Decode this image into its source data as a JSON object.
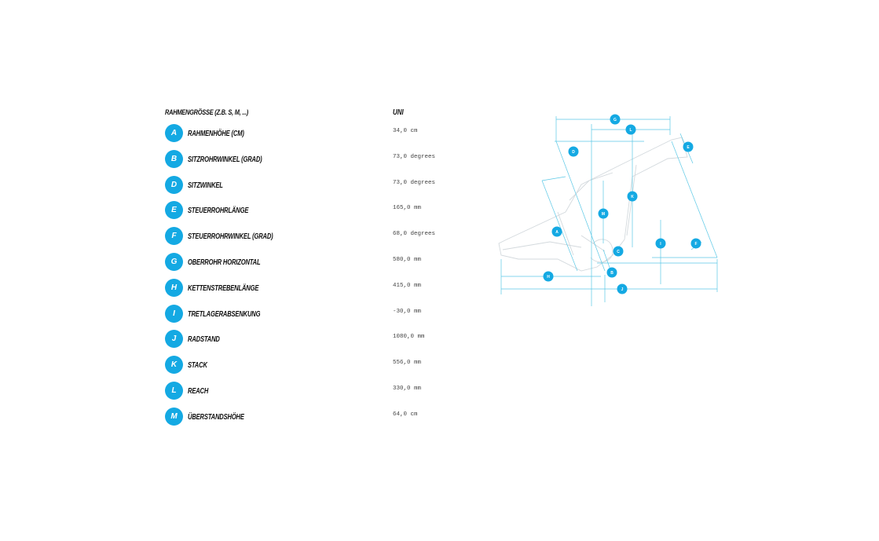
{
  "table": {
    "header_label": "RAHMENGRÖSSE (Z.B. S, M, ...)",
    "size_label": "UNI",
    "rows": [
      {
        "letter": "A",
        "label": "RAHMENHÖHE (CM)",
        "value": "34,0 cm"
      },
      {
        "letter": "B",
        "label": "SITZROHRWINKEL (GRAD)",
        "value": "73,0 degrees"
      },
      {
        "letter": "D",
        "label": "SITZWINKEL",
        "value": "73,0 degrees"
      },
      {
        "letter": "E",
        "label": "STEUERROHRLÄNGE",
        "value": "165,0 mm"
      },
      {
        "letter": "F",
        "label": "STEUERROHRWINKEL (GRAD)",
        "value": "68,0 degrees"
      },
      {
        "letter": "G",
        "label": "OBERROHR HORIZONTAL",
        "value": "580,0 mm"
      },
      {
        "letter": "H",
        "label": "KETTENSTREBENLÄNGE",
        "value": "415,0 mm"
      },
      {
        "letter": "I",
        "label": "TRETLAGERABSENKUNG",
        "value": "-30,0 mm"
      },
      {
        "letter": "J",
        "label": "RADSTAND",
        "value": "1080,0 mm"
      },
      {
        "letter": "K",
        "label": "STACK",
        "value": "556,0 mm"
      },
      {
        "letter": "L",
        "label": "REACH",
        "value": "330,0 mm"
      },
      {
        "letter": "M",
        "label": "ÜBERSTANDSHÖHE",
        "value": "64,0 cm"
      }
    ]
  },
  "diagram": {
    "accent_color": "#14a9e3",
    "line_color": "#5bc8e6",
    "frame_color": "#d8dde1",
    "markers": [
      "A",
      "B",
      "C",
      "D",
      "E",
      "F",
      "G",
      "H",
      "I",
      "J",
      "K",
      "L",
      "M"
    ]
  }
}
